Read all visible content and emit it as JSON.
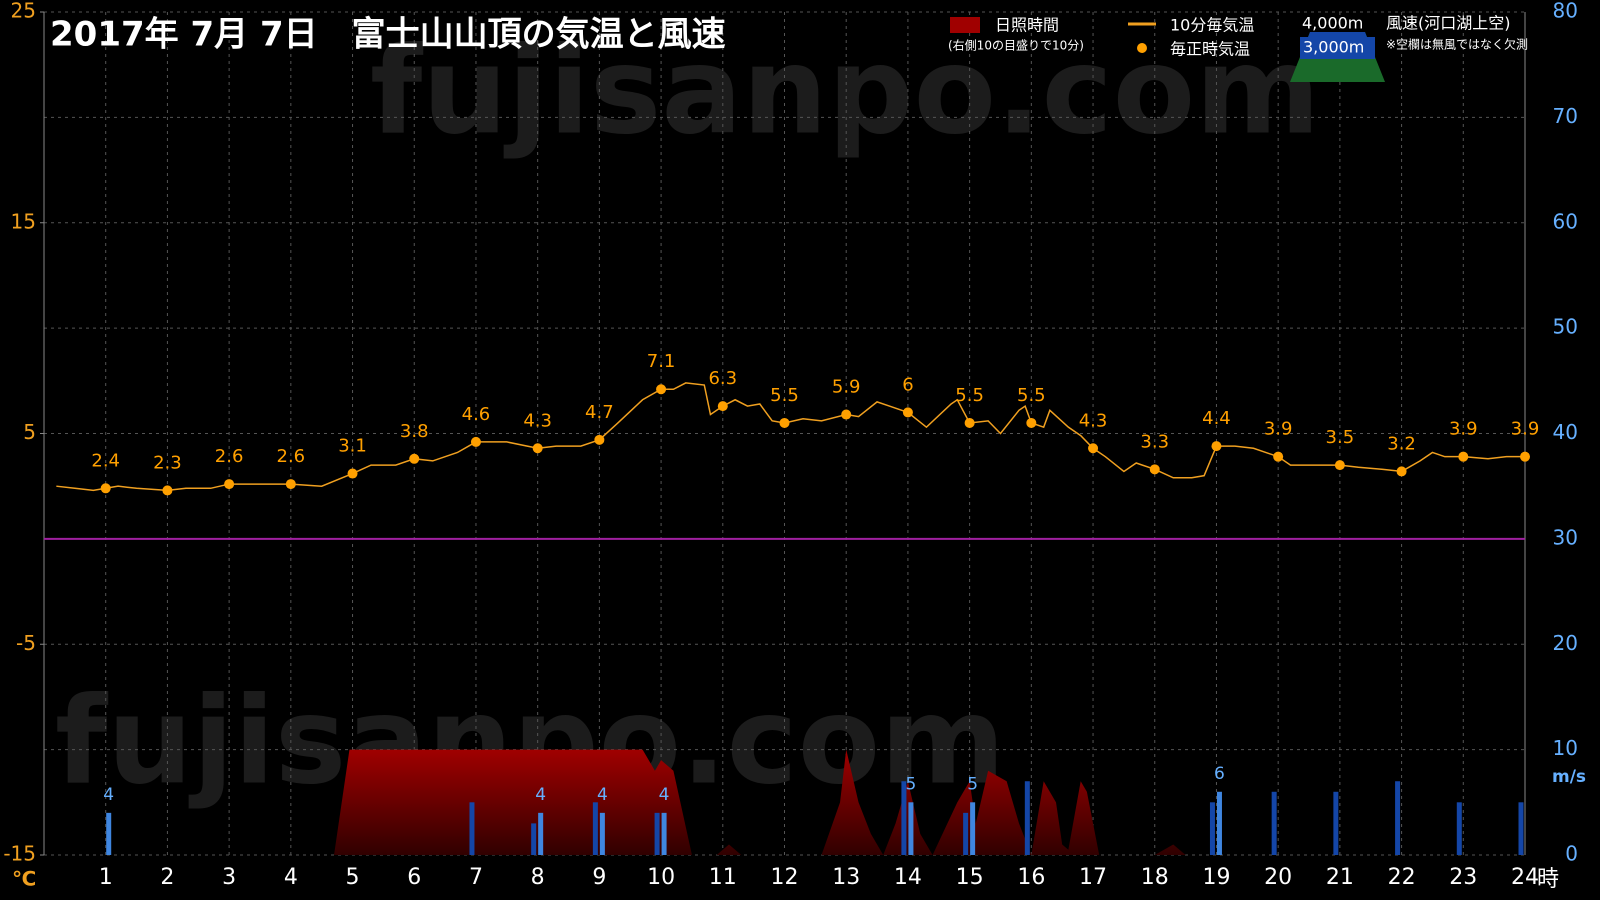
{
  "chart_data": {
    "type": "combo",
    "title": "2017年 7月 7日　富士山山頂の気温と風速",
    "watermark": "fujisanpo.com",
    "y_unit": "℃",
    "y2_unit": "m/s",
    "x_unit": "時",
    "sunshine_note": "(右側10の目盛りで10分)",
    "wind_legend_title": "風速(河口湖上空)",
    "wind_note": "※空欄は無風ではなく欠測",
    "xlim": [
      0,
      24
    ],
    "xticks": [
      1,
      2,
      3,
      4,
      5,
      6,
      7,
      8,
      9,
      10,
      11,
      12,
      13,
      14,
      15,
      16,
      17,
      18,
      19,
      20,
      21,
      22,
      23,
      24
    ],
    "ylim": [
      -15,
      25
    ],
    "yticks": [
      -15,
      -5,
      5,
      15,
      25
    ],
    "y2lim": [
      0,
      80
    ],
    "y2ticks": [
      0,
      10,
      20,
      30,
      40,
      50,
      60,
      70,
      80
    ],
    "grid": true,
    "zero_line": {
      "value": 0,
      "color": "#a020a0"
    },
    "series": [
      {
        "name": "日照時間",
        "type": "area",
        "axis": "y2",
        "color": "#a00000",
        "x": [
          0,
          4.7,
          4.95,
          9.7,
          9.9,
          10.0,
          10.2,
          10.5,
          10.9,
          11.1,
          11.3,
          12.6,
          12.9,
          13.0,
          13.2,
          13.4,
          13.6,
          13.8,
          14.0,
          14.2,
          14.4,
          14.8,
          15.0,
          15.1,
          15.3,
          15.6,
          15.8,
          16.0,
          16.2,
          16.4,
          16.5,
          16.6,
          16.8,
          16.9,
          17.1,
          18.0,
          18.3,
          18.5,
          24
        ],
        "values": [
          0,
          0,
          10,
          10,
          8,
          9,
          8,
          0,
          0,
          1,
          0,
          0,
          5,
          10,
          5,
          2,
          0,
          3,
          7,
          2,
          0,
          5,
          7,
          3,
          8,
          7,
          3,
          0,
          7,
          5,
          1,
          0.5,
          7,
          6,
          0,
          0,
          1,
          0,
          0
        ]
      },
      {
        "name": "10分毎気温",
        "type": "line",
        "color": "#f0a020",
        "x": [
          0.2,
          0.5,
          0.8,
          1,
          1.2,
          1.5,
          2,
          2.3,
          2.7,
          3,
          3.5,
          4,
          4.5,
          5,
          5.3,
          5.7,
          6,
          6.3,
          6.7,
          7,
          7.5,
          8,
          8.3,
          8.7,
          9,
          9.3,
          9.7,
          10,
          10.2,
          10.4,
          10.7,
          10.8,
          11,
          11.2,
          11.4,
          11.6,
          11.8,
          12,
          12.3,
          12.6,
          13,
          13.2,
          13.5,
          13.7,
          14,
          14.3,
          14.7,
          14.8,
          15,
          15.3,
          15.5,
          15.8,
          15.9,
          16,
          16.2,
          16.3,
          16.6,
          16.8,
          17,
          17.2,
          17.5,
          17.7,
          18,
          18.3,
          18.6,
          18.8,
          19,
          19.3,
          19.6,
          20,
          20.2,
          20.5,
          21,
          21.3,
          21.7,
          22,
          22.3,
          22.5,
          22.7,
          23,
          23.4,
          23.7,
          24
        ],
        "values": [
          2.5,
          2.4,
          2.3,
          2.4,
          2.5,
          2.4,
          2.3,
          2.4,
          2.4,
          2.6,
          2.6,
          2.6,
          2.5,
          3.1,
          3.5,
          3.5,
          3.8,
          3.7,
          4.1,
          4.6,
          4.6,
          4.3,
          4.4,
          4.4,
          4.7,
          5.5,
          6.6,
          7.1,
          7.1,
          7.4,
          7.3,
          5.9,
          6.3,
          6.6,
          6.3,
          6.4,
          5.6,
          5.5,
          5.7,
          5.6,
          5.9,
          5.8,
          6.5,
          6.3,
          6,
          5.3,
          6.4,
          6.6,
          5.5,
          5.6,
          5,
          6.1,
          6.3,
          5.5,
          5.3,
          6.1,
          5.3,
          4.9,
          4.3,
          3.9,
          3.2,
          3.6,
          3.3,
          2.9,
          2.9,
          3,
          4.4,
          4.4,
          4.3,
          3.9,
          3.5,
          3.5,
          3.5,
          3.4,
          3.3,
          3.2,
          3.7,
          4.1,
          3.9,
          3.9,
          3.8,
          3.9,
          3.9
        ]
      },
      {
        "name": "毎正時気温",
        "type": "scatter",
        "color": "#ffa000",
        "x": [
          1,
          2,
          3,
          4,
          5,
          6,
          7,
          8,
          9,
          10,
          11,
          12,
          13,
          14,
          15,
          16,
          17,
          18,
          19,
          20,
          21,
          22,
          23,
          24
        ],
        "values": [
          2.4,
          2.3,
          2.6,
          2.6,
          3.1,
          3.8,
          4.6,
          4.3,
          4.7,
          7.1,
          6.3,
          5.5,
          5.9,
          6,
          5.5,
          5.5,
          4.3,
          3.3,
          4.4,
          3.9,
          3.5,
          3.2,
          3.9,
          3.9
        ]
      },
      {
        "name": "4,000m",
        "type": "bar",
        "axis": "y2",
        "color": "#1446a8",
        "x": [
          1,
          2,
          3,
          4,
          5,
          6,
          7,
          8,
          9,
          10,
          11,
          12,
          13,
          14,
          15,
          16,
          17,
          18,
          19,
          20,
          21,
          22,
          23,
          24
        ],
        "values": [
          null,
          null,
          null,
          null,
          null,
          null,
          5,
          3,
          5,
          4,
          null,
          null,
          null,
          7,
          4,
          7,
          null,
          null,
          5,
          6,
          6,
          7,
          5,
          5
        ]
      },
      {
        "name": "3,000m",
        "type": "bar",
        "axis": "y2",
        "color": "#3f86e0",
        "labels": true,
        "x": [
          1,
          2,
          3,
          4,
          5,
          6,
          7,
          8,
          9,
          10,
          11,
          12,
          13,
          14,
          15,
          16,
          17,
          18,
          19,
          20,
          21,
          22,
          23,
          24
        ],
        "values": [
          4,
          null,
          null,
          null,
          null,
          null,
          null,
          4,
          4,
          4,
          null,
          null,
          null,
          5,
          5,
          null,
          null,
          null,
          6,
          null,
          null,
          null,
          null,
          null
        ]
      }
    ]
  }
}
